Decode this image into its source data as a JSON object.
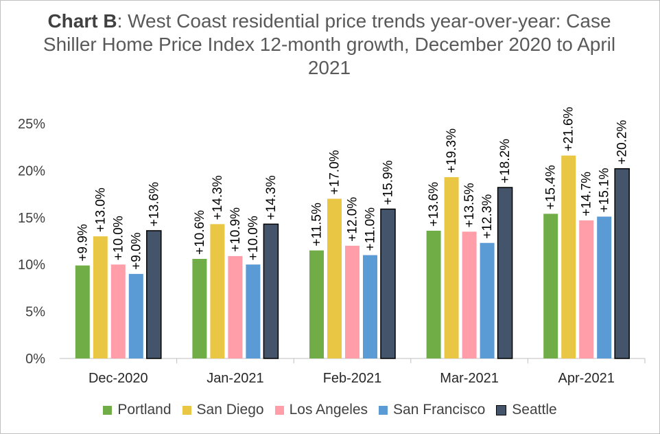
{
  "chart_data": {
    "type": "bar",
    "title_bold": "Chart B",
    "title_rest": ": West Coast residential price trends year-over-year: Case Shiller Home Price Index 12-month growth, December 2020 to April 2021",
    "categories": [
      "Dec-2020",
      "Jan-2021",
      "Feb-2021",
      "Mar-2021",
      "Apr-2021"
    ],
    "series": [
      {
        "name": "Portland",
        "color": "#70ad47",
        "values": [
          9.9,
          10.6,
          11.5,
          13.6,
          15.4
        ],
        "labels": [
          "+9.9%",
          "+10.6%",
          "+11.5%",
          "+13.6%",
          "+15.4%"
        ]
      },
      {
        "name": "San Diego",
        "color": "#e9c744",
        "values": [
          13.0,
          14.3,
          17.0,
          19.3,
          21.6
        ],
        "labels": [
          "+13.0%",
          "+14.3%",
          "+17.0%",
          "+19.3%",
          "+21.6%"
        ]
      },
      {
        "name": "Los Angeles",
        "color": "#ff9ea9",
        "values": [
          10.0,
          10.9,
          12.0,
          13.5,
          14.7
        ],
        "labels": [
          "+10.0%",
          "+10.9%",
          "+12.0%",
          "+13.5%",
          "+14.7%"
        ]
      },
      {
        "name": "San Francisco",
        "color": "#5b9bd5",
        "values": [
          9.0,
          10.0,
          11.0,
          12.3,
          15.1
        ],
        "labels": [
          "+9.0%",
          "+10.0%",
          "+11.0%",
          "+12.3%",
          "+15.1%"
        ]
      },
      {
        "name": "Seattle",
        "color": "#44546a",
        "values": [
          13.6,
          14.3,
          15.9,
          18.2,
          20.2
        ],
        "labels": [
          "+13.6%",
          "+14.3%",
          "+15.9%",
          "+18.2%",
          "+20.2%"
        ],
        "outline": "#000000"
      }
    ],
    "y_ticks": [
      "0%",
      "5%",
      "10%",
      "15%",
      "20%",
      "25%"
    ],
    "ylim": [
      0,
      25
    ],
    "grid": false,
    "legend_position": "bottom"
  }
}
